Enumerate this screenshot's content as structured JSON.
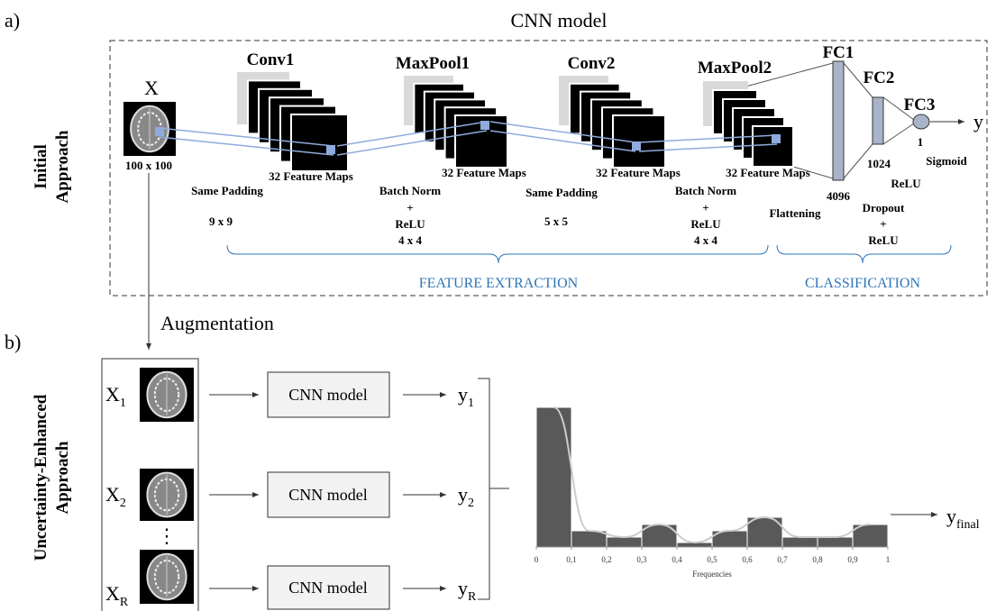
{
  "panel_a": {
    "label": "a)",
    "title": "CNN model",
    "side_label": [
      "Initial",
      "Approach"
    ],
    "input": {
      "name": "X",
      "size": "100 x 100"
    },
    "layers": [
      {
        "name": "Conv1",
        "maps": "32 Feature Maps"
      },
      {
        "name": "MaxPool1",
        "maps": "32 Feature Maps"
      },
      {
        "name": "Conv2",
        "maps": "32 Feature Maps"
      },
      {
        "name": "MaxPool2",
        "maps": "32 Feature Maps"
      }
    ],
    "ops": [
      {
        "lines": [
          "Same Padding",
          "9 x 9"
        ]
      },
      {
        "lines": [
          "Batch Norm",
          "+",
          "ReLU",
          "4 x 4"
        ]
      },
      {
        "lines": [
          "Same Padding",
          "5 x 5"
        ]
      },
      {
        "lines": [
          "Batch Norm",
          "+",
          "ReLU",
          "4 x 4"
        ]
      }
    ],
    "fc": [
      {
        "name": "FC1",
        "units": "4096"
      },
      {
        "name": "FC2",
        "units": "1024"
      },
      {
        "name": "FC3",
        "units": "1"
      }
    ],
    "fc_ops": {
      "flatten": "Flattening",
      "dropout": [
        "Dropout",
        "+",
        "ReLU"
      ],
      "relu": "ReLU",
      "sigmoid": "Sigmoid"
    },
    "output": "y",
    "groups": [
      "FEATURE EXTRACTION",
      "CLASSIFICATION"
    ],
    "augmentation": "Augmentation"
  },
  "panel_b": {
    "label": "b)",
    "side_label": [
      "Uncertainty-Enhanced",
      "Approach"
    ],
    "inputs": [
      {
        "base": "X",
        "sub": "1"
      },
      {
        "base": "X",
        "sub": "2"
      },
      {
        "base": "X",
        "sub": "R"
      }
    ],
    "dots": "⋮",
    "model": [
      "CNN model",
      "CNN model",
      "CNN model"
    ],
    "outputs": [
      {
        "base": "y",
        "sub": "1"
      },
      {
        "base": "y",
        "sub": "2"
      },
      {
        "base": "y",
        "sub": "R"
      }
    ],
    "final": {
      "base": "y",
      "sub": "final"
    },
    "histogram": {
      "type": "histogram",
      "bins": [
        0,
        0.1,
        0.2,
        0.3,
        0.4,
        0.5,
        0.6,
        0.7,
        0.8,
        0.9,
        1
      ],
      "counts": [
        155,
        18,
        11,
        25,
        5,
        18,
        33,
        11,
        11,
        25
      ],
      "color": "#595959",
      "xlim": [
        0,
        1
      ],
      "xticks": [
        0,
        {
          "value": 0.1,
          "label": "0,1"
        },
        {
          "value": 0.2,
          "label": "0,2"
        },
        {
          "value": 0.3,
          "label": "0,3"
        },
        {
          "value": 0.4,
          "label": "0,4"
        },
        {
          "value": 0.5,
          "label": "0,5"
        },
        {
          "value": 0.6,
          "label": "0,6"
        },
        {
          "value": 0.7,
          "label": "0,7"
        },
        {
          "value": 0.8,
          "label": "0,8"
        },
        {
          "value": 0.9,
          "label": "0,9"
        },
        1
      ],
      "xlabel": "Frequencies"
    }
  }
}
